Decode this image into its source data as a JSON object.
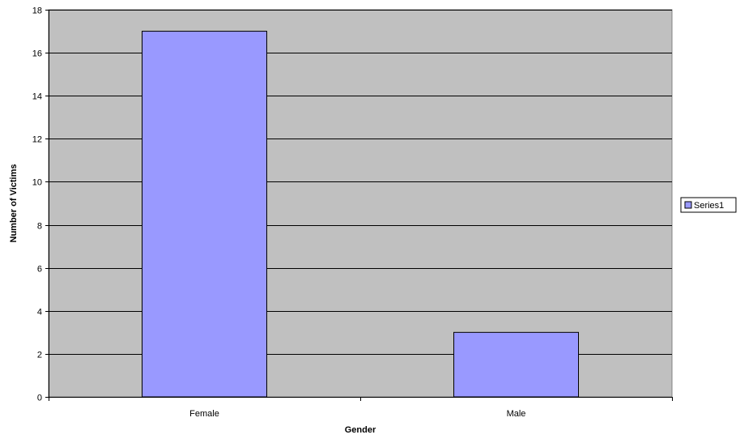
{
  "chart_data": {
    "type": "bar",
    "categories": [
      "Female",
      "Male"
    ],
    "series": [
      {
        "name": "Series1",
        "values": [
          17,
          3
        ]
      }
    ],
    "xlabel": "Gender",
    "ylabel": "Number of Victims",
    "ylim": [
      0,
      18
    ],
    "ytick_step": 2,
    "grid": true,
    "legend_position": "right",
    "colors": {
      "plot_background": "#c0c0c0",
      "bar_fill": "#9999ff",
      "bar_stroke": "#000000",
      "grid": "#000000"
    }
  }
}
